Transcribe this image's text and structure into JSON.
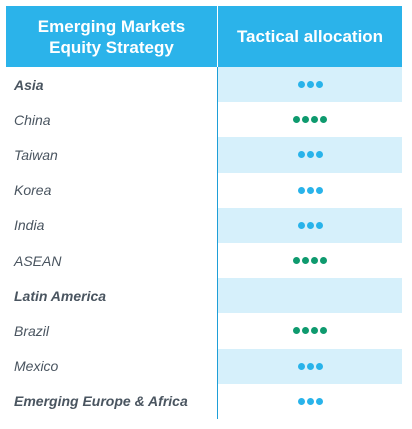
{
  "header": {
    "strategy_label": "Emerging Markets Equity Strategy",
    "allocation_label": "Tactical allocation"
  },
  "colors": {
    "header_bg": "#2bb3ea",
    "shade_bg": "#d6f0fb",
    "dot_neutral": "#29b3ea",
    "dot_positive": "#0e9a6e"
  },
  "rows": [
    {
      "label": "Asia",
      "bold": true,
      "dots": 3,
      "color": "blue"
    },
    {
      "label": "China",
      "bold": false,
      "dots": 4,
      "color": "green"
    },
    {
      "label": "Taiwan",
      "bold": false,
      "dots": 3,
      "color": "blue"
    },
    {
      "label": "Korea",
      "bold": false,
      "dots": 3,
      "color": "blue"
    },
    {
      "label": "India",
      "bold": false,
      "dots": 3,
      "color": "blue"
    },
    {
      "label": "ASEAN",
      "bold": false,
      "dots": 4,
      "color": "green"
    },
    {
      "label": "Latin America",
      "bold": true,
      "dots": 0,
      "color": "blue"
    },
    {
      "label": "Brazil",
      "bold": false,
      "dots": 4,
      "color": "green"
    },
    {
      "label": "Mexico",
      "bold": false,
      "dots": 3,
      "color": "blue"
    },
    {
      "label": "Emerging Europe & Africa",
      "bold": true,
      "dots": 3,
      "color": "blue"
    }
  ]
}
